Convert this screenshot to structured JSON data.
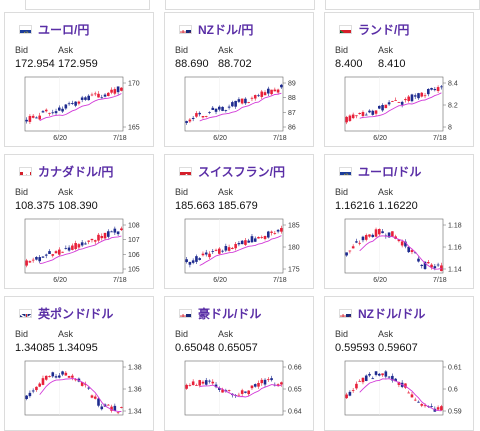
{
  "cards": [
    {
      "name": "ユーロ/円",
      "flag": "eu",
      "bid": "172.954",
      "ask": "172.959",
      "date1": "6/20",
      "date2": "7/18",
      "ticks": [
        "170",
        "165"
      ],
      "seed": 1,
      "trend": "up"
    },
    {
      "name": "NZドル/円",
      "flag": "nz",
      "bid": "88.690",
      "ask": "88.702",
      "date1": "6/20",
      "date2": "7/18",
      "ticks": [
        "89",
        "88",
        "87",
        "86"
      ],
      "seed": 2,
      "trend": "up"
    },
    {
      "name": "ランド/円",
      "flag": "za",
      "bid": "8.400",
      "ask": "8.410",
      "date1": "6/20",
      "date2": "7/18",
      "ticks": [
        "8.4",
        "8.2",
        "8"
      ],
      "seed": 3,
      "trend": "up"
    },
    {
      "name": "カナダドル/円",
      "flag": "ca",
      "bid": "108.375",
      "ask": "108.390",
      "date1": "6/20",
      "date2": "7/18",
      "ticks": [
        "108",
        "107",
        "106",
        "105"
      ],
      "seed": 4,
      "trend": "up"
    },
    {
      "name": "スイスフラン/円",
      "flag": "ch",
      "bid": "185.663",
      "ask": "185.679",
      "date1": "6/20",
      "date2": "7/18",
      "ticks": [
        "185",
        "180",
        "175"
      ],
      "seed": 5,
      "trend": "up"
    },
    {
      "name": "ユーロ/ドル",
      "flag": "eu",
      "bid": "1.16216",
      "ask": "1.16220",
      "date1": "6/20",
      "date2": "7/18",
      "ticks": [
        "1.18",
        "1.16",
        "1.14"
      ],
      "seed": 6,
      "trend": "hump"
    },
    {
      "name": "英ポンド/ドル",
      "flag": "gb",
      "bid": "1.34085",
      "ask": "1.34095",
      "date1": "",
      "date2": "",
      "ticks": [
        "1.38",
        "1.36",
        "1.34"
      ],
      "seed": 7,
      "trend": "hump"
    },
    {
      "name": "豪ドル/ドル",
      "flag": "au",
      "bid": "0.65048",
      "ask": "0.65057",
      "date1": "",
      "date2": "",
      "ticks": [
        "0.66",
        "0.65",
        "0.64"
      ],
      "seed": 8,
      "trend": "flat"
    },
    {
      "name": "NZドル/ドル",
      "flag": "nz",
      "bid": "0.59593",
      "ask": "0.59607",
      "date1": "",
      "date2": "",
      "ticks": [
        "0.61",
        "0.6",
        "0.59"
      ],
      "seed": 9,
      "trend": "hump"
    }
  ],
  "labels": {
    "bid": "Bid",
    "ask": "Ask"
  },
  "colors": {
    "title": "#5a2ea6",
    "up": "#e8203a",
    "down": "#1e2b8f",
    "ma": "#d23ad8"
  }
}
